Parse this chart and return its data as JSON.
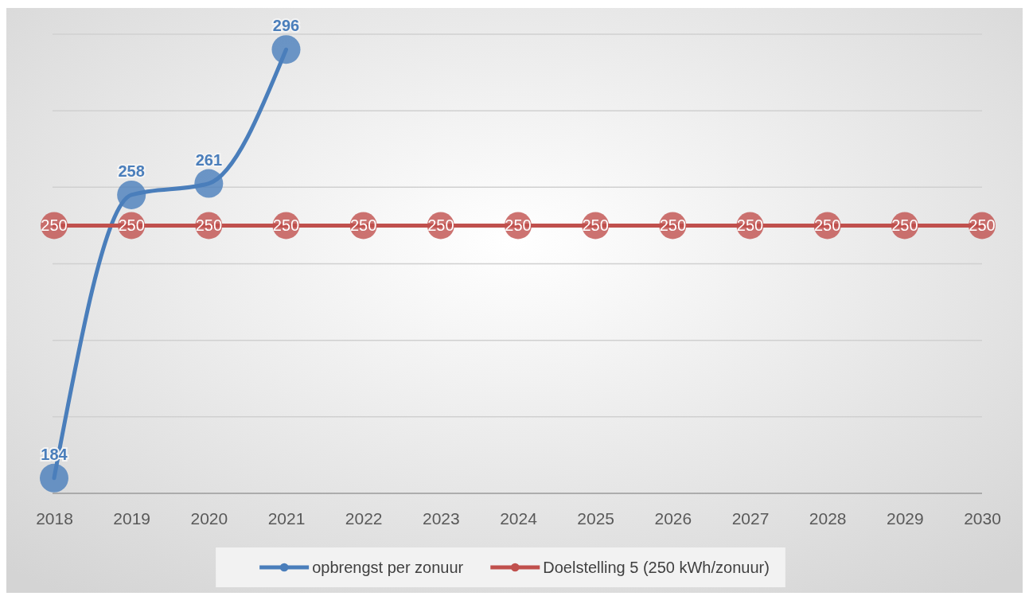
{
  "chart_data": {
    "type": "line",
    "categories": [
      "2018",
      "2019",
      "2020",
      "2021",
      "2022",
      "2023",
      "2024",
      "2025",
      "2026",
      "2027",
      "2028",
      "2029",
      "2030"
    ],
    "series": [
      {
        "name": "opbrengst per zonuur",
        "color": "#4a7ebb",
        "values": [
          184,
          258,
          261,
          296,
          null,
          null,
          null,
          null,
          null,
          null,
          null,
          null,
          null
        ]
      },
      {
        "name": "Doelstelling 5 (250 kWh/zonuur)",
        "color": "#c0504d",
        "values": [
          250,
          250,
          250,
          250,
          250,
          250,
          250,
          250,
          250,
          250,
          250,
          250,
          250
        ]
      }
    ],
    "ylim": [
      180,
      300
    ],
    "yticks": [
      {
        "value": 180,
        "label": null
      },
      {
        "value": 200,
        "label": null
      },
      {
        "value": 220,
        "label": null
      },
      {
        "value": 240,
        "label": null
      },
      {
        "value": 260,
        "label": null
      },
      {
        "value": 280,
        "label": null
      },
      {
        "value": 300,
        "label": null
      }
    ],
    "tick_labels": "x",
    "grid": "y",
    "legend": "bottom",
    "marker": "circle",
    "line_style": "solid",
    "data_labels": true
  }
}
